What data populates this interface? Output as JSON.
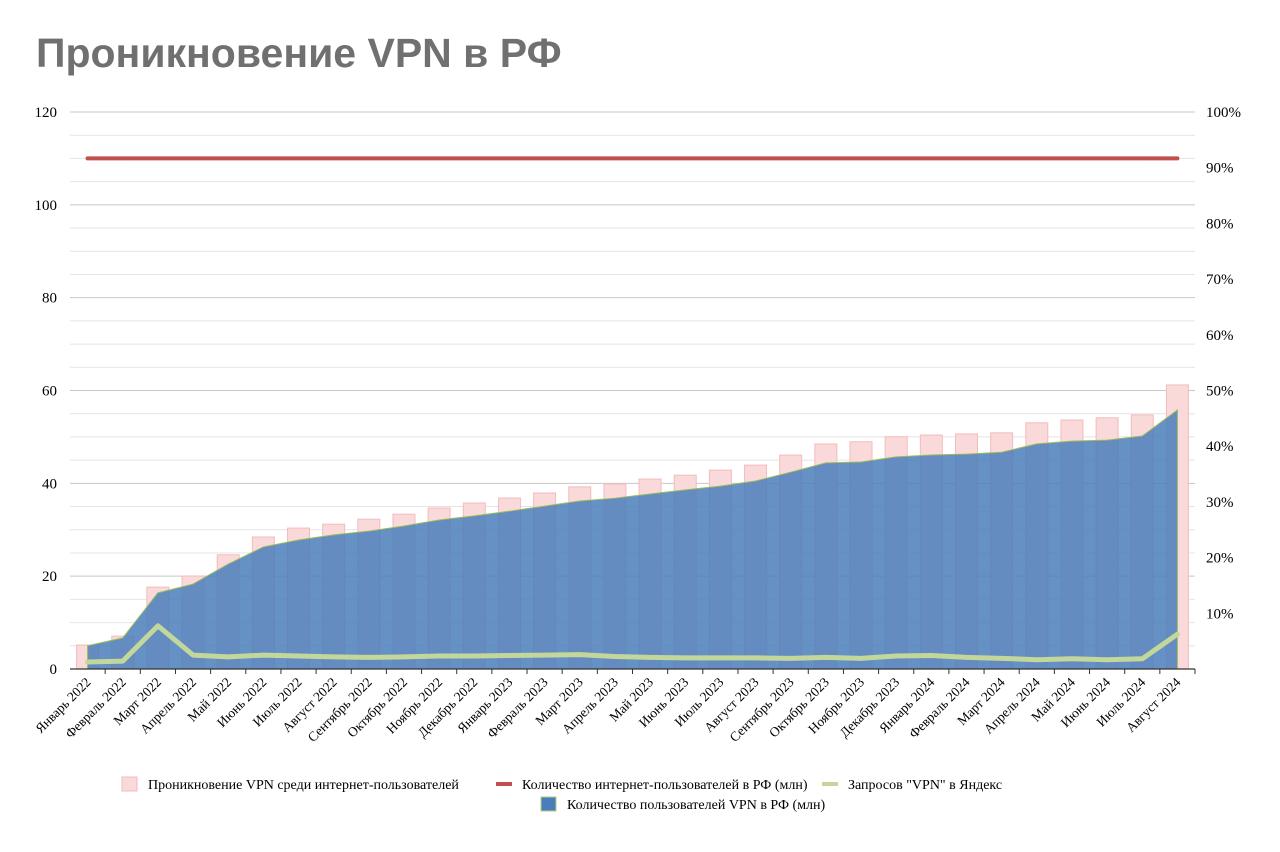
{
  "chart_data": {
    "type": "bar+line+area",
    "title": "Проникновение VPN в РФ",
    "categories": [
      "Январь 2022",
      "Февраль 2022",
      "Март 2022",
      "Апрель 2022",
      "Май 2022",
      "Июнь 2022",
      "Июль 2022",
      "Август 2022",
      "Сентябрь 2022",
      "Октябрь 2022",
      "Ноябрь 2022",
      "Декабрь 2022",
      "Январь 2023",
      "Февраль 2023",
      "Март 2023",
      "Апрель 2023",
      "Май 2023",
      "Июнь 2023",
      "Июль 2023",
      "Август 2023",
      "Сентябрь 2023",
      "Октябрь 2023",
      "Ноябрь 2023",
      "Декабрь 2023",
      "Январь 2024",
      "Февраль 2024",
      "Март 2024",
      "Апрель 2024",
      "Май 2024",
      "Июнь 2024",
      "Июль 2024",
      "Август 2024"
    ],
    "y_left": {
      "ylim": [
        0,
        120
      ],
      "ticks": [
        "0",
        "20",
        "40",
        "60",
        "80",
        "100",
        "120"
      ]
    },
    "y_right": {
      "ylim": [
        0,
        100
      ],
      "ticks": [
        "10%",
        "20%",
        "30%",
        "40%",
        "50%",
        "60%",
        "70%",
        "80%",
        "90%",
        "100%"
      ]
    },
    "grid": true,
    "legend_position": "bottom",
    "series": [
      {
        "name": "Проникновение VPN среди интернет-пользователей",
        "type": "bar",
        "axis": "right",
        "unit": "%",
        "color": "#f9d9d9",
        "values": [
          4.3,
          5.9,
          14.7,
          16.7,
          20.5,
          23.7,
          25.3,
          26.0,
          26.9,
          27.8,
          28.9,
          29.8,
          30.7,
          31.6,
          32.7,
          33.2,
          34.1,
          34.8,
          35.7,
          36.6,
          38.4,
          40.4,
          40.8,
          41.7,
          42.0,
          42.2,
          42.4,
          44.2,
          44.7,
          45.1,
          45.6,
          51.0
        ]
      },
      {
        "name": "Количество пользователей VPN в РФ (млн)",
        "type": "line",
        "axis": "left",
        "color": "#4a7ebb",
        "values": [
          5.0,
          6.7,
          16.4,
          18.3,
          22.6,
          26.3,
          27.8,
          28.9,
          29.7,
          30.8,
          32.1,
          33.0,
          34.0,
          35.1,
          36.2,
          36.8,
          37.7,
          38.6,
          39.4,
          40.5,
          42.4,
          44.4,
          44.6,
          45.7,
          46.1,
          46.3,
          46.7,
          48.5,
          49.1,
          49.3,
          50.2,
          55.8
        ]
      },
      {
        "name": "Количество интернет-пользователей в РФ (млн)",
        "type": "line",
        "axis": "left",
        "color": "#c0504d",
        "values": [
          110,
          110,
          110,
          110,
          110,
          110,
          110,
          110,
          110,
          110,
          110,
          110,
          110,
          110,
          110,
          110,
          110,
          110,
          110,
          110,
          110,
          110,
          110,
          110,
          110,
          110,
          110,
          110,
          110,
          110,
          110,
          110
        ]
      },
      {
        "name": "Запросов \"VPN\" в Яндекс",
        "type": "area",
        "axis": "left",
        "color": "#c4d79b",
        "values": [
          1.5,
          1.7,
          9.3,
          3.0,
          2.6,
          3.0,
          2.8,
          2.6,
          2.5,
          2.6,
          2.8,
          2.8,
          2.9,
          3.0,
          3.1,
          2.7,
          2.5,
          2.4,
          2.4,
          2.4,
          2.3,
          2.5,
          2.3,
          2.8,
          2.9,
          2.5,
          2.3,
          2.0,
          2.2,
          2.0,
          2.2,
          7.5
        ]
      }
    ]
  }
}
